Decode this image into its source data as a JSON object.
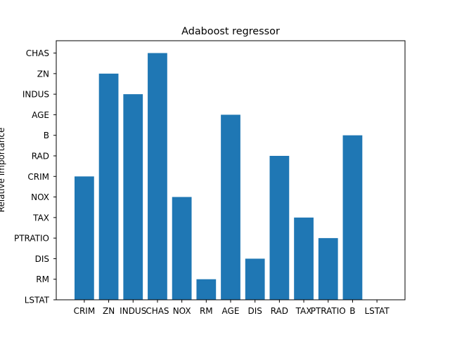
{
  "chart_data": {
    "type": "bar",
    "title": "Adaboost regressor",
    "xlabel": "",
    "ylabel": "Relative importance",
    "categories": [
      "CRIM",
      "ZN",
      "INDUS",
      "CHAS",
      "NOX",
      "RM",
      "AGE",
      "DIS",
      "RAD",
      "TAX",
      "PTRATIO",
      "B",
      "LSTAT"
    ],
    "y_categories": [
      "LSTAT",
      "RM",
      "DIS",
      "PTRATIO",
      "TAX",
      "NOX",
      "CRIM",
      "RAD",
      "B",
      "AGE",
      "INDUS",
      "ZN",
      "CHAS"
    ],
    "values": [
      "CRIM",
      "ZN",
      "INDUS",
      "CHAS",
      "NOX",
      "RM",
      "AGE",
      "DIS",
      "RAD",
      "TAX",
      "PTRATIO",
      "B",
      "LSTAT"
    ],
    "bar_color": "#1f77b4",
    "grid": false,
    "legend": false
  }
}
